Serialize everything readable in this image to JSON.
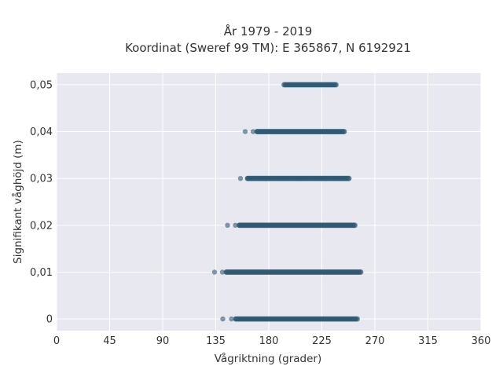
{
  "chart_data": {
    "type": "scatter",
    "title_lines": [
      "År 1979 - 2019",
      "Koordinat (Sweref 99 TM): E 365867, N 6192921"
    ],
    "xlabel": "Vågriktning (grader)",
    "ylabel": "Signifikant våghöjd (m)",
    "xlim": [
      0,
      360
    ],
    "ylim": [
      -0.0025,
      0.0525
    ],
    "x_ticks": [
      0,
      45,
      90,
      135,
      180,
      225,
      270,
      315,
      360
    ],
    "x_tick_labels": [
      "0",
      "45",
      "90",
      "135",
      "180",
      "225",
      "270",
      "315",
      "360"
    ],
    "y_ticks": [
      0,
      0.01,
      0.02,
      0.03,
      0.04,
      0.05
    ],
    "y_tick_labels": [
      "0",
      "0,01",
      "0,02",
      "0,03",
      "0,04",
      "0,05"
    ],
    "grid": true,
    "marker_color": "#2e5a72",
    "plot_background": "#e8e8f0",
    "bands": [
      {
        "y": 0.0,
        "outlier_min": 141,
        "outlier_max": 152,
        "dense_min": 152,
        "dense_max": 255
      },
      {
        "y": 0.01,
        "outlier_min": 134,
        "outlier_max": 144,
        "dense_min": 144,
        "dense_max": 258
      },
      {
        "y": 0.02,
        "outlier_min": 145,
        "outlier_max": 155,
        "dense_min": 155,
        "dense_max": 253
      },
      {
        "y": 0.03,
        "outlier_min": 156,
        "outlier_max": 162,
        "dense_min": 162,
        "dense_max": 248
      },
      {
        "y": 0.04,
        "outlier_min": 160,
        "outlier_max": 170,
        "dense_min": 170,
        "dense_max": 244
      },
      {
        "y": 0.05,
        "outlier_min": 193,
        "outlier_max": 193,
        "dense_min": 193,
        "dense_max": 237
      }
    ]
  }
}
